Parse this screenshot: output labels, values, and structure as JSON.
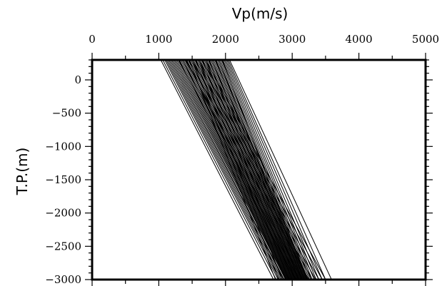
{
  "chart_data": {
    "type": "line",
    "xlabel": "Vp(m/s)",
    "ylabel": "T.P.(m)",
    "x_axis_position": "top",
    "xlim": [
      0,
      5000
    ],
    "ylim": [
      -3000,
      300
    ],
    "x_ticks": [
      0,
      1000,
      2000,
      3000,
      4000,
      5000
    ],
    "y_ticks": [
      0,
      -500,
      -1000,
      -1500,
      -2000,
      -2500,
      -3000
    ],
    "x_tick_labels": [
      "0",
      "1000",
      "2000",
      "3000",
      "4000",
      "5000"
    ],
    "y_tick_labels": [
      "0",
      "−500",
      "−1000",
      "−1500",
      "−2000",
      "−2500",
      "−3000"
    ],
    "grid": false,
    "line_color": "#000000",
    "series": [
      {
        "x": [
          1030,
          2720
        ]
      },
      {
        "x": [
          1060,
          2760
        ]
      },
      {
        "x": [
          1090,
          2790
        ]
      },
      {
        "x": [
          1110,
          2810
        ]
      },
      {
        "x": [
          1130,
          2830
        ]
      },
      {
        "x": [
          1150,
          2850
        ]
      },
      {
        "x": [
          1170,
          2870
        ]
      },
      {
        "x": [
          1190,
          2880
        ]
      },
      {
        "x": [
          1210,
          2900
        ]
      },
      {
        "x": [
          1230,
          2910
        ]
      },
      {
        "x": [
          1250,
          2920
        ]
      },
      {
        "x": [
          1270,
          2930
        ]
      },
      {
        "x": [
          1290,
          2940
        ]
      },
      {
        "x": [
          1310,
          2950
        ]
      },
      {
        "x": [
          1330,
          2960
        ]
      },
      {
        "x": [
          1350,
          2970
        ]
      },
      {
        "x": [
          1370,
          2980
        ]
      },
      {
        "x": [
          1390,
          2990
        ]
      },
      {
        "x": [
          1410,
          3000
        ]
      },
      {
        "x": [
          1420,
          3010
        ]
      },
      {
        "x": [
          1440,
          3020
        ]
      },
      {
        "x": [
          1460,
          3030
        ]
      },
      {
        "x": [
          1480,
          3040
        ]
      },
      {
        "x": [
          1500,
          3050
        ]
      },
      {
        "x": [
          1520,
          3060
        ]
      },
      {
        "x": [
          1540,
          3070
        ]
      },
      {
        "x": [
          1560,
          3080
        ]
      },
      {
        "x": [
          1580,
          3090
        ]
      },
      {
        "x": [
          1600,
          3100
        ]
      },
      {
        "x": [
          1620,
          3110
        ]
      },
      {
        "x": [
          1640,
          3120
        ]
      },
      {
        "x": [
          1660,
          3130
        ]
      },
      {
        "x": [
          1680,
          3140
        ]
      },
      {
        "x": [
          1700,
          3150
        ]
      },
      {
        "x": [
          1720,
          3160
        ]
      },
      {
        "x": [
          1740,
          3170
        ]
      },
      {
        "x": [
          1760,
          3180
        ]
      },
      {
        "x": [
          1780,
          3190
        ]
      },
      {
        "x": [
          1800,
          3200
        ]
      },
      {
        "x": [
          1820,
          3210
        ]
      },
      {
        "x": [
          1840,
          3220
        ]
      },
      {
        "x": [
          1860,
          3230
        ]
      },
      {
        "x": [
          1880,
          3240
        ]
      },
      {
        "x": [
          1900,
          3260
        ]
      },
      {
        "x": [
          1920,
          3280
        ]
      },
      {
        "x": [
          1940,
          3300
        ]
      },
      {
        "x": [
          1960,
          3330
        ]
      },
      {
        "x": [
          1980,
          3360
        ]
      },
      {
        "x": [
          2000,
          3400
        ]
      },
      {
        "x": [
          2020,
          3450
        ]
      },
      {
        "x": [
          2040,
          3500
        ]
      },
      {
        "x": [
          2060,
          3590
        ]
      },
      {
        "x": [
          1450,
          2750
        ]
      },
      {
        "x": [
          1500,
          2800
        ]
      },
      {
        "x": [
          1550,
          2850
        ]
      },
      {
        "x": [
          1600,
          2900
        ]
      },
      {
        "x": [
          1650,
          2950
        ]
      },
      {
        "x": [
          1700,
          3000
        ]
      },
      {
        "x": [
          1750,
          3050
        ]
      },
      {
        "x": [
          1800,
          3100
        ]
      },
      {
        "x": [
          1850,
          3150
        ]
      },
      {
        "x": [
          1900,
          3180
        ]
      },
      {
        "x": [
          1950,
          3220
        ]
      },
      {
        "x": [
          1300,
          3050
        ]
      },
      {
        "x": [
          1350,
          3100
        ]
      },
      {
        "x": [
          1400,
          3150
        ]
      },
      {
        "x": [
          1450,
          3250
        ]
      },
      {
        "x": [
          1500,
          3300
        ]
      },
      {
        "x": [
          1550,
          3350
        ]
      },
      {
        "x": [
          1600,
          3400
        ]
      },
      {
        "x": [
          1650,
          3450
        ]
      },
      {
        "x": [
          1700,
          3500
        ]
      }
    ],
    "y": [
      300,
      -3000
    ]
  }
}
